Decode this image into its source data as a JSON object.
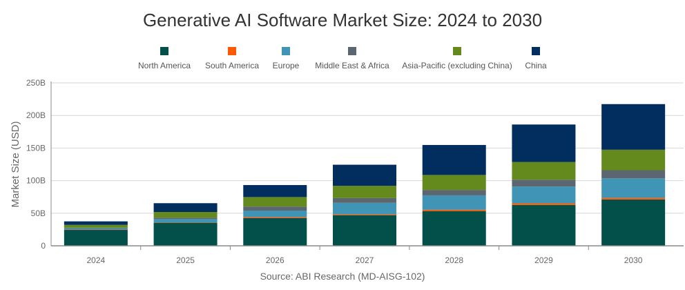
{
  "chart_data": {
    "type": "bar",
    "stacked": true,
    "title": "Generative AI Software Market Size: 2024 to 2030",
    "ylabel": "Market Size (USD)",
    "xlabel": "",
    "source": "Source: ABI Research (MD-AISG-102)",
    "ylim": [
      0,
      250
    ],
    "yticks": [
      "0",
      "50B",
      "100B",
      "150B",
      "200B",
      "250B"
    ],
    "grid": true,
    "legend_position": "top",
    "categories": [
      "2024",
      "2025",
      "2026",
      "2027",
      "2028",
      "2029",
      "2030"
    ],
    "series": [
      {
        "name": "North America",
        "color": "#034f4a",
        "values": [
          24.5,
          35.4,
          42.7,
          47.0,
          53.3,
          62.7,
          71.1
        ]
      },
      {
        "name": "South America",
        "color": "#ff5a00",
        "values": [
          0.3,
          0.5,
          1.5,
          1.4,
          2.1,
          2.5,
          2.4
        ]
      },
      {
        "name": "Europe",
        "color": "#4095b6",
        "values": [
          2.1,
          5.0,
          9.8,
          17.5,
          22.0,
          25.7,
          30.0
        ]
      },
      {
        "name": "Middle East & Africa",
        "color": "#5c6670",
        "values": [
          0.8,
          2.2,
          6.2,
          7.3,
          8.3,
          10.5,
          12.5
        ]
      },
      {
        "name": "Asia-Pacific (excluding China)",
        "color": "#648a1e",
        "values": [
          4.4,
          8.8,
          14.6,
          18.8,
          23.0,
          27.2,
          31.4
        ]
      },
      {
        "name": "China",
        "color": "#022d5f",
        "values": [
          5.4,
          13.5,
          18.4,
          32.4,
          46.0,
          57.5,
          70.0
        ]
      }
    ]
  }
}
